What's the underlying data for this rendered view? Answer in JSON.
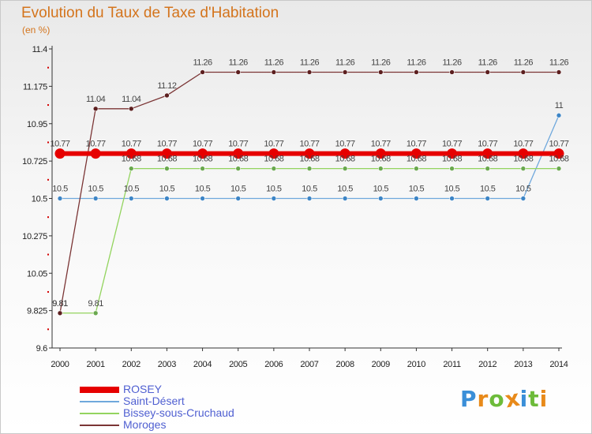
{
  "title": "Evolution du Taux de Taxe d'Habitation",
  "unit_label": "(en %)",
  "brand": {
    "letters": [
      "P",
      "r",
      "o",
      "x",
      "i",
      "t",
      "i"
    ],
    "colors": [
      "#3a8fd8",
      "#e88a1a",
      "#6dbb3a",
      "#e88a1a",
      "#3a8fd8",
      "#6dbb3a",
      "#e88a1a"
    ]
  },
  "chart_data": {
    "type": "line",
    "title": "Evolution du Taux de Taxe d'Habitation",
    "xlabel": "",
    "ylabel": "(en %)",
    "x": [
      "2000",
      "2001",
      "2002",
      "2003",
      "2004",
      "2005",
      "2006",
      "2007",
      "2008",
      "2009",
      "2010",
      "2011",
      "2012",
      "2013",
      "2014"
    ],
    "ylim": [
      9.6,
      11.4
    ],
    "yticks": [
      "9.6",
      "9.825",
      "10.05",
      "10.275",
      "10.5",
      "10.725",
      "10.95",
      "11.175",
      "11.4"
    ],
    "grid": false,
    "legend_position": "bottom-left",
    "series": [
      {
        "name": "ROSEY",
        "color": "#e60000",
        "width": 6,
        "marker": "#e60000",
        "marker_r": 6.5,
        "labels": true,
        "label_color": "#444444",
        "values": [
          10.77,
          10.77,
          10.77,
          10.77,
          10.77,
          10.77,
          10.77,
          10.77,
          10.77,
          10.77,
          10.77,
          10.77,
          10.77,
          10.77,
          10.77
        ]
      },
      {
        "name": "Saint-Désert",
        "color": "#6fa8dc",
        "width": 1.3,
        "marker": "#3d85c6",
        "marker_r": 3,
        "labels": true,
        "label_color": "#444444",
        "values": [
          10.5,
          10.5,
          10.5,
          10.5,
          10.5,
          10.5,
          10.5,
          10.5,
          10.5,
          10.5,
          10.5,
          10.5,
          10.5,
          10.5,
          11
        ]
      },
      {
        "name": "Bissey-sous-Cruchaud",
        "color": "#93d45e",
        "width": 1.3,
        "marker": "#6aa84f",
        "marker_r": 3,
        "labels": true,
        "label_color": "#444444",
        "values": [
          9.81,
          9.81,
          10.68,
          10.68,
          10.68,
          10.68,
          10.68,
          10.68,
          10.68,
          10.68,
          10.68,
          10.68,
          10.68,
          10.68,
          10.68
        ]
      },
      {
        "name": "Moroges",
        "color": "#7b3535",
        "width": 1.3,
        "marker": "#5c1f1f",
        "marker_r": 3,
        "labels": true,
        "label_color": "#444444",
        "values": [
          9.81,
          11.04,
          11.04,
          11.12,
          11.26,
          11.26,
          11.26,
          11.26,
          11.26,
          11.26,
          11.26,
          11.26,
          11.26,
          11.26,
          11.26
        ]
      }
    ]
  }
}
